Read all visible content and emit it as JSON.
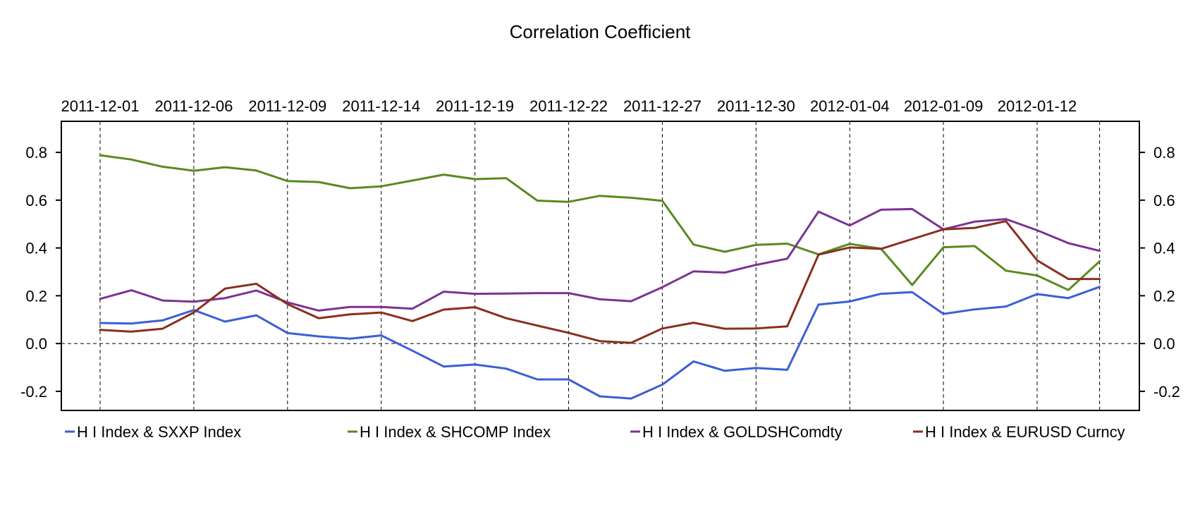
{
  "chart_data": {
    "type": "line",
    "title": "Correlation Coefficient",
    "xlabel": "",
    "ylabel": "",
    "ylim": [
      -0.28,
      0.93
    ],
    "yticks": [
      -0.2,
      0.0,
      0.2,
      0.4,
      0.6,
      0.8
    ],
    "ytick_labels": [
      "-0.2",
      "0.0",
      "0.2",
      "0.4",
      "0.6",
      "0.8"
    ],
    "grid": true,
    "legend_position": "bottom",
    "point_count": 33,
    "x_tick_labels": [
      {
        "index": 0,
        "label": "2011-12-01"
      },
      {
        "index": 3,
        "label": "2011-12-06"
      },
      {
        "index": 6,
        "label": "2011-12-09"
      },
      {
        "index": 9,
        "label": "2011-12-14"
      },
      {
        "index": 12,
        "label": "2011-12-19"
      },
      {
        "index": 15,
        "label": "2011-12-22"
      },
      {
        "index": 18,
        "label": "2011-12-27"
      },
      {
        "index": 21,
        "label": "2011-12-30"
      },
      {
        "index": 24,
        "label": "2012-01-04"
      },
      {
        "index": 27,
        "label": "2012-01-09"
      },
      {
        "index": 30,
        "label": "2012-01-12"
      },
      {
        "index": 32,
        "label": ""
      }
    ],
    "series": [
      {
        "name": "H I Index & SXXP Index",
        "color": "#3b5fd6",
        "values": [
          0.086,
          0.084,
          0.097,
          0.14,
          0.092,
          0.118,
          0.044,
          0.03,
          0.02,
          0.034,
          -0.03,
          -0.096,
          -0.088,
          -0.105,
          -0.15,
          -0.15,
          -0.221,
          -0.23,
          -0.172,
          -0.075,
          -0.114,
          -0.102,
          -0.11,
          0.163,
          0.176,
          0.208,
          0.215,
          0.124,
          0.143,
          0.155,
          0.207,
          0.19,
          0.237
        ]
      },
      {
        "name": "H I Index & SHCOMP Index",
        "color": "#5a8a1e",
        "values": [
          0.788,
          0.77,
          0.74,
          0.723,
          0.738,
          0.724,
          0.68,
          0.676,
          0.65,
          0.658,
          0.682,
          0.707,
          0.688,
          0.692,
          0.598,
          0.593,
          0.618,
          0.61,
          0.597,
          0.414,
          0.384,
          0.413,
          0.418,
          0.373,
          0.417,
          0.397,
          0.245,
          0.403,
          0.408,
          0.305,
          0.285,
          0.224,
          0.344
        ]
      },
      {
        "name": "H I Index & GOLDSHComdty",
        "color": "#7b3294",
        "values": [
          0.187,
          0.223,
          0.18,
          0.175,
          0.19,
          0.222,
          0.172,
          0.138,
          0.153,
          0.153,
          0.146,
          0.217,
          0.208,
          0.209,
          0.211,
          0.211,
          0.185,
          0.177,
          0.236,
          0.302,
          0.297,
          0.329,
          0.355,
          0.552,
          0.494,
          0.56,
          0.563,
          0.478,
          0.51,
          0.521,
          0.474,
          0.42,
          0.388
        ]
      },
      {
        "name": "H I Index & EURUSD Curncy",
        "color": "#8b2e1f",
        "values": [
          0.057,
          0.05,
          0.062,
          0.13,
          0.23,
          0.25,
          0.165,
          0.106,
          0.122,
          0.13,
          0.094,
          0.142,
          0.152,
          0.106,
          0.075,
          0.045,
          0.01,
          0.003,
          0.063,
          0.087,
          0.062,
          0.063,
          0.072,
          0.372,
          0.402,
          0.396,
          0.437,
          0.478,
          0.484,
          0.512,
          0.348,
          0.27,
          0.27
        ]
      }
    ]
  }
}
